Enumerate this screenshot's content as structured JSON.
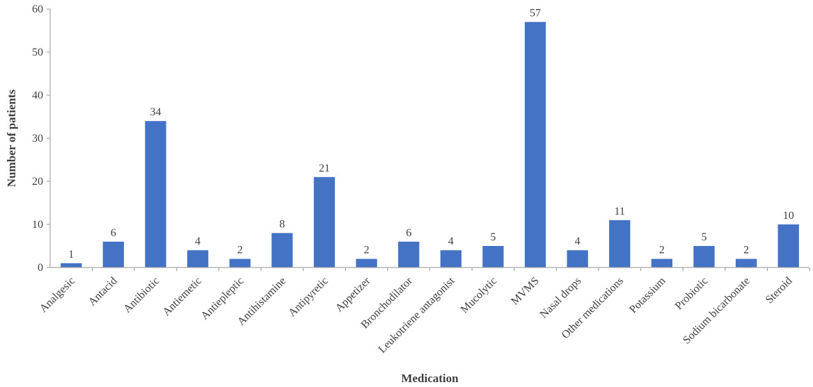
{
  "chart_data": {
    "type": "bar",
    "categories": [
      "Analgesic",
      "Antacid",
      "Antibiotic",
      "Antiemetic",
      "Antiepleptic",
      "Antihistamine",
      "Antipyretic",
      "Appetizer",
      "Bronchodilator",
      "Leukotriene antagonist",
      "Mucolytic",
      "MVMS",
      "Nasal drops",
      "Other medications",
      "Potassium",
      "Probiotic",
      "Sodium bicarbonate",
      "Steroid"
    ],
    "values": [
      1,
      6,
      34,
      4,
      2,
      8,
      21,
      2,
      6,
      4,
      5,
      57,
      4,
      11,
      2,
      5,
      2,
      10
    ],
    "xlabel": "Medication",
    "ylabel": "Number of patients",
    "ylim": [
      0,
      60
    ],
    "yticks": [
      0,
      10,
      20,
      30,
      40,
      50,
      60
    ],
    "grid": false,
    "legend": "none",
    "bar_color": "#4472C4"
  }
}
